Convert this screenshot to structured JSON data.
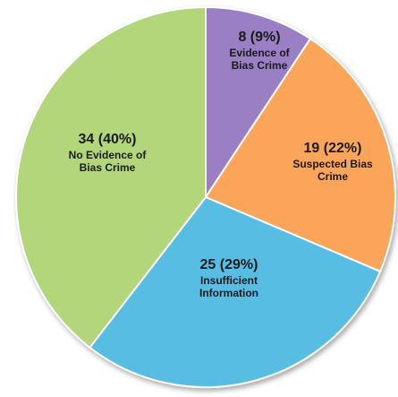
{
  "chart_data": {
    "type": "pie",
    "title": "",
    "slices": [
      {
        "value": 8,
        "percent": 9,
        "count_label": "8 (9%)",
        "label_lines": [
          "Evidence of",
          "Bias Crime"
        ],
        "color": "#9b7fc4",
        "text_color": "#1a1a1a"
      },
      {
        "value": 19,
        "percent": 22,
        "count_label": "19 (22%)",
        "label_lines": [
          "Suspected Bias",
          "Crime"
        ],
        "color": "#fba55a",
        "text_color": "#1a1a1a"
      },
      {
        "value": 25,
        "percent": 29,
        "count_label": "25 (29%)",
        "label_lines": [
          "Insufficient",
          "Information"
        ],
        "color": "#58bde3",
        "text_color": "#1a1a1a"
      },
      {
        "value": 34,
        "percent": 40,
        "count_label": "34 (40%)",
        "label_lines": [
          "No Evidence of",
          "Bias Crime"
        ],
        "color": "#b4d67a",
        "text_color": "#1a1a1a"
      }
    ],
    "start_direction": "top",
    "direction": "clockwise",
    "legend": "none"
  }
}
